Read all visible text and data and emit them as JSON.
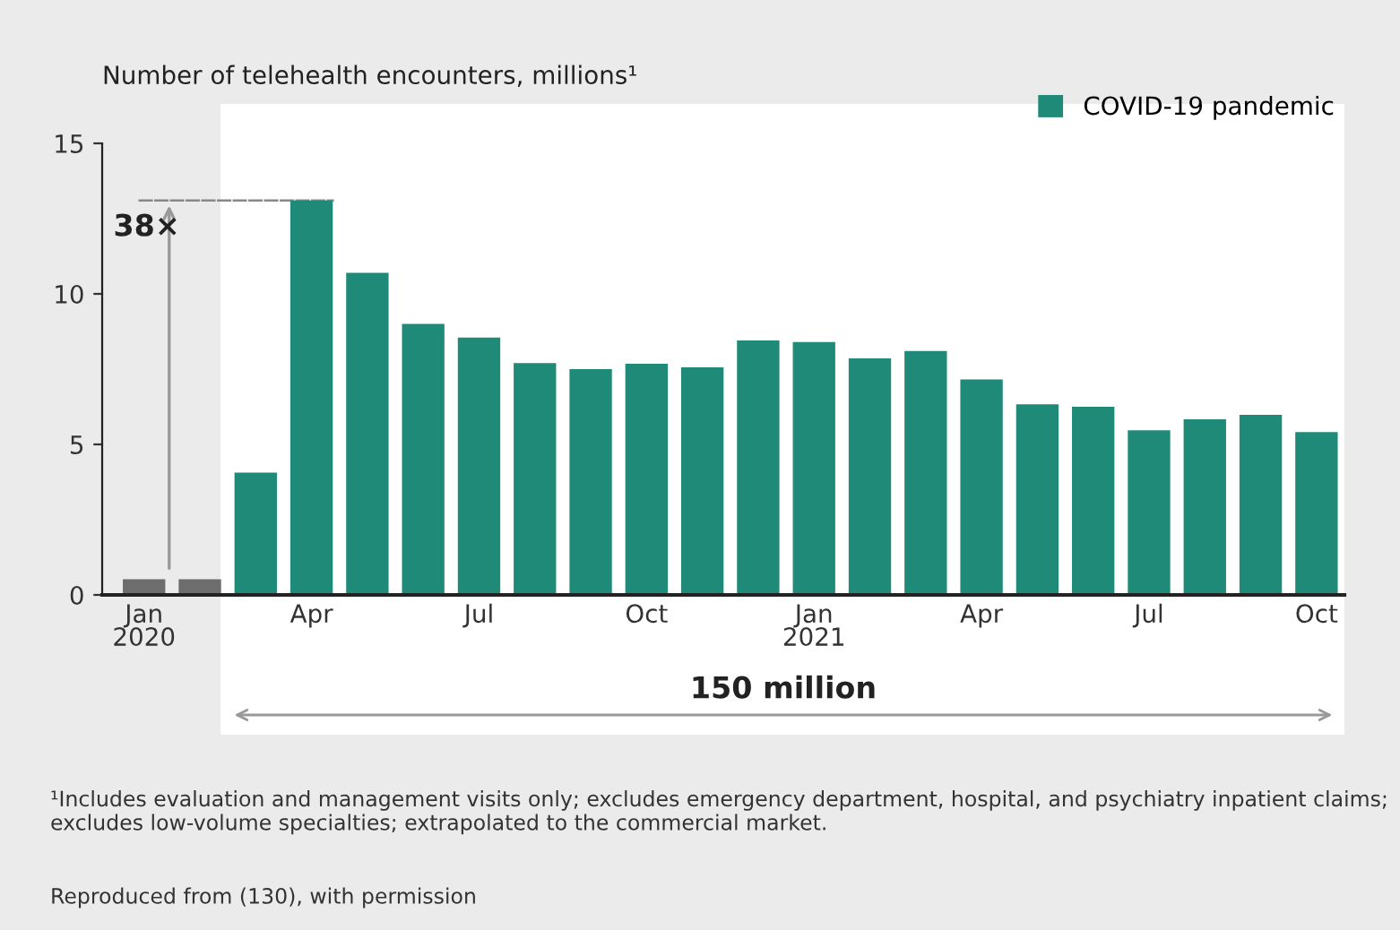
{
  "chart_data": {
    "type": "bar",
    "ylabel": "Number of telehealth encounters, millions¹",
    "categories": [
      "Jan\n2020",
      null,
      null,
      "Apr",
      null,
      null,
      "Jul",
      null,
      null,
      "Oct",
      null,
      null,
      "Jan\n2021",
      null,
      null,
      "Apr",
      null,
      null,
      "Jul",
      null,
      null,
      "Oct"
    ],
    "series": [
      {
        "color": "#6d6d6d",
        "values": [
          0.52,
          0.52,
          null,
          null,
          null,
          null,
          null,
          null,
          null,
          null,
          null,
          null,
          null,
          null,
          null,
          null,
          null,
          null,
          null,
          null,
          null,
          null
        ]
      },
      {
        "name": "COVID-19 pandemic",
        "color": "#208a78",
        "values": [
          null,
          null,
          4.06,
          13.1,
          10.7,
          9.0,
          8.55,
          7.7,
          7.5,
          7.68,
          7.56,
          8.45,
          8.4,
          7.86,
          8.1,
          7.16,
          6.33,
          6.25,
          5.47,
          5.83,
          5.98,
          5.41
        ]
      }
    ],
    "ylim": [
      0,
      15
    ],
    "yticks": [
      0,
      5,
      10,
      15
    ],
    "legend": "top right",
    "grid": false,
    "annotations": [
      "38×",
      "150 million",
      "¹Includes evaluation and management visits only; excludes emergency department, hospital, and psychiatry inpatient claims; excludes low-volume specialties; extrapolated to the commercial market.",
      "Reproduced from (130), with permission"
    ]
  }
}
